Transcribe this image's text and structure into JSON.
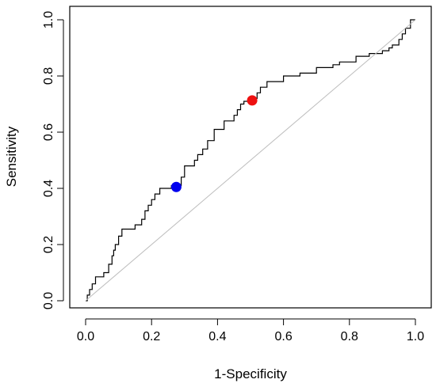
{
  "chart_data": {
    "type": "line",
    "title": "",
    "xlabel": "1-Specificity",
    "ylabel": "Sensitivity",
    "xlim": [
      0,
      1
    ],
    "ylim": [
      0,
      1
    ],
    "xticks": [
      "0.0",
      "0.2",
      "0.4",
      "0.6",
      "0.8",
      "1.0"
    ],
    "yticks": [
      "0.0",
      "0.2",
      "0.4",
      "0.6",
      "0.8",
      "1.0"
    ],
    "grid": false,
    "legend": "none",
    "series": [
      {
        "style": "step",
        "color": "#000000",
        "x": [
          0.0,
          0.005,
          0.005,
          0.012,
          0.012,
          0.02,
          0.02,
          0.03,
          0.03,
          0.055,
          0.055,
          0.07,
          0.07,
          0.08,
          0.08,
          0.085,
          0.085,
          0.09,
          0.09,
          0.1,
          0.1,
          0.11,
          0.11,
          0.15,
          0.15,
          0.17,
          0.17,
          0.18,
          0.18,
          0.19,
          0.19,
          0.2,
          0.2,
          0.21,
          0.21,
          0.225,
          0.225,
          0.26,
          0.26,
          0.29,
          0.29,
          0.3,
          0.3,
          0.33,
          0.33,
          0.34,
          0.34,
          0.355,
          0.355,
          0.37,
          0.37,
          0.39,
          0.39,
          0.42,
          0.42,
          0.45,
          0.45,
          0.46,
          0.46,
          0.47,
          0.47,
          0.48,
          0.48,
          0.5,
          0.5,
          0.52,
          0.52,
          0.53,
          0.53,
          0.55,
          0.55,
          0.6,
          0.6,
          0.65,
          0.65,
          0.7,
          0.7,
          0.75,
          0.75,
          0.77,
          0.77,
          0.82,
          0.82,
          0.86,
          0.86,
          0.9,
          0.9,
          0.92,
          0.92,
          0.93,
          0.93,
          0.95,
          0.95,
          0.96,
          0.96,
          0.97,
          0.97,
          0.985,
          0.985,
          1.0
        ],
        "y": [
          0.0,
          0.0,
          0.02,
          0.02,
          0.04,
          0.04,
          0.06,
          0.06,
          0.085,
          0.085,
          0.1,
          0.1,
          0.13,
          0.13,
          0.16,
          0.16,
          0.18,
          0.18,
          0.2,
          0.2,
          0.23,
          0.23,
          0.255,
          0.255,
          0.27,
          0.27,
          0.29,
          0.29,
          0.32,
          0.32,
          0.34,
          0.34,
          0.36,
          0.36,
          0.38,
          0.38,
          0.4,
          0.4,
          0.41,
          0.41,
          0.44,
          0.44,
          0.48,
          0.48,
          0.5,
          0.5,
          0.52,
          0.52,
          0.54,
          0.54,
          0.57,
          0.57,
          0.61,
          0.61,
          0.64,
          0.64,
          0.66,
          0.66,
          0.68,
          0.68,
          0.7,
          0.7,
          0.71,
          0.71,
          0.72,
          0.72,
          0.74,
          0.74,
          0.76,
          0.76,
          0.78,
          0.78,
          0.8,
          0.8,
          0.81,
          0.81,
          0.83,
          0.83,
          0.84,
          0.84,
          0.85,
          0.85,
          0.87,
          0.87,
          0.88,
          0.88,
          0.89,
          0.89,
          0.9,
          0.9,
          0.91,
          0.91,
          0.93,
          0.93,
          0.95,
          0.95,
          0.97,
          0.97,
          1.0,
          1.0
        ]
      },
      {
        "style": "line",
        "color": "#bebebe",
        "x": [
          0,
          1
        ],
        "y": [
          0,
          1
        ]
      }
    ],
    "points": [
      {
        "x": 0.275,
        "y": 0.405,
        "color": "#0000ee"
      },
      {
        "x": 0.505,
        "y": 0.713,
        "color": "#ee1111"
      }
    ]
  }
}
